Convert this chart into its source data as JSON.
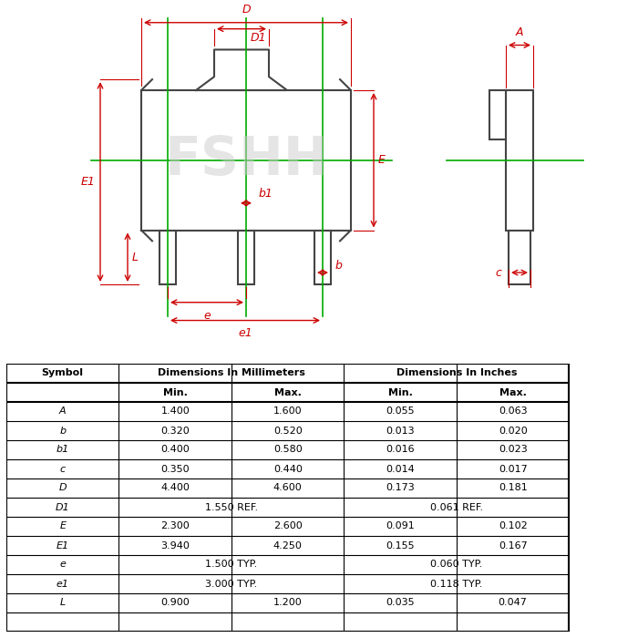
{
  "table_data": {
    "headers": [
      "Symbol",
      "Dimensions In Millimeters",
      "",
      "Dimensions In Inches",
      ""
    ],
    "subheaders": [
      "",
      "Min.",
      "Max.",
      "Min.",
      "Max."
    ],
    "rows": [
      [
        "A",
        "1.400",
        "1.600",
        "0.055",
        "0.063"
      ],
      [
        "b",
        "0.320",
        "0.520",
        "0.013",
        "0.020"
      ],
      [
        "b1",
        "0.400",
        "0.580",
        "0.016",
        "0.023"
      ],
      [
        "c",
        "0.350",
        "0.440",
        "0.014",
        "0.017"
      ],
      [
        "D",
        "4.400",
        "4.600",
        "0.173",
        "0.181"
      ],
      [
        "D1",
        "1.550 REF.",
        "",
        "0.061 REF.",
        ""
      ],
      [
        "E",
        "2.300",
        "2.600",
        "0.091",
        "0.102"
      ],
      [
        "E1",
        "3.940",
        "4.250",
        "0.155",
        "0.167"
      ],
      [
        "e",
        "1.500 TYP.",
        "",
        "0.060 TYP.",
        ""
      ],
      [
        "e1",
        "3.000 TYP.",
        "",
        "0.118 TYP.",
        ""
      ],
      [
        "L",
        "0.900",
        "1.200",
        "0.035",
        "0.047"
      ]
    ]
  },
  "drawing_color": "#CC0000",
  "component_color": "#444444",
  "green_line_color": "#00AA00",
  "watermark_color": "#CCCCCC",
  "watermark_text": "FSHH",
  "background_color": "#FFFFFF"
}
